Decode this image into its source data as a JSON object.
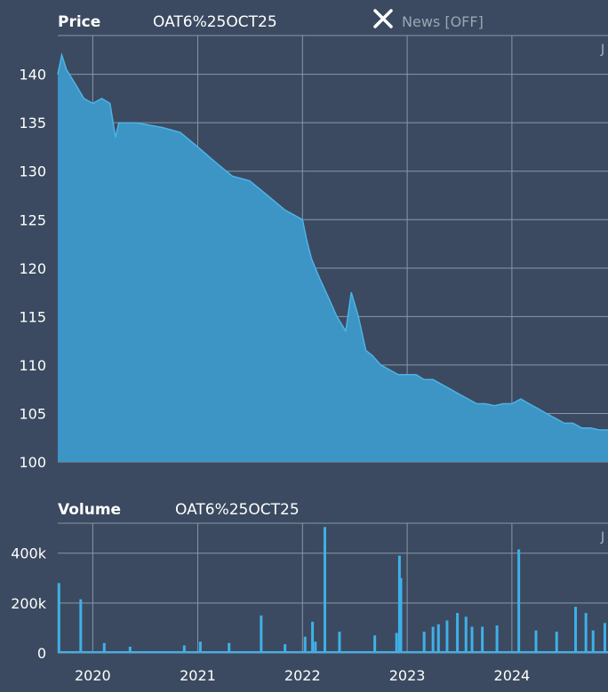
{
  "price_panel": {
    "title": "Price",
    "instrument": "OAT6%25OCT25",
    "news_toggle_label": "News [OFF]",
    "corner_label": "J"
  },
  "volume_panel": {
    "title": "Volume",
    "instrument": "OAT6%25OCT25",
    "corner_label": "J"
  },
  "colors": {
    "background": "#3b4a60",
    "grid": "#8896a8",
    "area_fill": "#3c95c4",
    "line": "#4db3e6",
    "volume_bar": "#3fb0e8"
  },
  "chart_data": [
    {
      "type": "area",
      "title": "Price",
      "series": [
        {
          "name": "OAT6%25OCT25",
          "x": [
            "2019-09-01",
            "2019-09-15",
            "2019-10-01",
            "2019-11-01",
            "2019-12-01",
            "2020-01-01",
            "2020-02-01",
            "2020-03-01",
            "2020-03-20",
            "2020-04-01",
            "2020-06-01",
            "2020-09-01",
            "2020-11-01",
            "2021-01-01",
            "2021-03-01",
            "2021-05-01",
            "2021-07-01",
            "2021-09-01",
            "2021-11-01",
            "2022-01-01",
            "2022-01-15",
            "2022-02-01",
            "2022-03-01",
            "2022-04-01",
            "2022-05-01",
            "2022-06-01",
            "2022-06-20",
            "2022-07-15",
            "2022-08-10",
            "2022-09-01",
            "2022-10-01",
            "2022-11-01",
            "2022-12-01",
            "2023-01-01",
            "2023-02-01",
            "2023-03-01",
            "2023-04-01",
            "2023-05-01",
            "2023-06-01",
            "2023-07-01",
            "2023-08-01",
            "2023-09-01",
            "2023-10-01",
            "2023-11-01",
            "2023-12-01",
            "2024-01-01",
            "2024-02-01",
            "2024-03-01",
            "2024-04-01",
            "2024-05-01",
            "2024-06-01",
            "2024-07-01",
            "2024-08-01",
            "2024-09-01",
            "2024-10-01",
            "2024-11-01",
            "2024-12-01"
          ],
          "values": [
            140.0,
            142.0,
            140.5,
            139.0,
            137.5,
            137.0,
            137.5,
            137.0,
            133.5,
            135.0,
            135.0,
            134.5,
            134.0,
            132.5,
            131.0,
            129.5,
            129.0,
            127.5,
            126.0,
            125.0,
            123.0,
            121.0,
            119.0,
            117.0,
            115.0,
            113.5,
            117.5,
            115.0,
            111.5,
            111.0,
            110.0,
            109.5,
            109.0,
            109.0,
            109.0,
            108.5,
            108.5,
            108.0,
            107.5,
            107.0,
            106.5,
            106.0,
            106.0,
            105.8,
            106.0,
            106.0,
            106.5,
            106.0,
            105.5,
            105.0,
            104.5,
            104.0,
            104.0,
            103.5,
            103.5,
            103.3,
            103.3
          ]
        }
      ],
      "xlabel": "",
      "ylabel": "",
      "x_ticks": [
        "2020",
        "2021",
        "2022",
        "2023",
        "2024"
      ],
      "y_ticks": [
        "100",
        "105",
        "110",
        "115",
        "120",
        "125",
        "130",
        "135",
        "140"
      ],
      "ylim": [
        100,
        144
      ],
      "xlim": [
        "2019-09-01",
        "2024-12-01"
      ],
      "grid": true
    },
    {
      "type": "bar",
      "title": "Volume",
      "series": [
        {
          "name": "OAT6%25OCT25",
          "x": [
            "2019-09-05",
            "2019-11-20",
            "2020-02-10",
            "2020-05-10",
            "2020-11-15",
            "2021-01-10",
            "2021-04-20",
            "2021-08-10",
            "2021-11-01",
            "2022-01-10",
            "2022-02-05",
            "2022-02-15",
            "2022-03-20",
            "2022-05-10",
            "2022-09-10",
            "2022-11-25",
            "2022-12-05",
            "2022-12-10",
            "2023-03-01",
            "2023-04-01",
            "2023-04-20",
            "2023-05-20",
            "2023-06-25",
            "2023-07-25",
            "2023-08-15",
            "2023-09-20",
            "2023-11-10",
            "2024-01-25",
            "2024-03-25",
            "2024-06-05",
            "2024-08-10",
            "2024-09-15",
            "2024-10-10",
            "2024-11-20"
          ],
          "values": [
            280000,
            215000,
            40000,
            25000,
            30000,
            45000,
            40000,
            150000,
            35000,
            65000,
            125000,
            45000,
            505000,
            85000,
            70000,
            80000,
            390000,
            300000,
            85000,
            105000,
            115000,
            130000,
            160000,
            145000,
            105000,
            105000,
            110000,
            415000,
            90000,
            85000,
            185000,
            160000,
            90000,
            120000
          ]
        }
      ],
      "x_ticks": [
        "2020",
        "2021",
        "2022",
        "2023",
        "2024"
      ],
      "y_ticks": [
        "0",
        "200k",
        "400k"
      ],
      "ylim": [
        0,
        520000
      ],
      "grid": true
    }
  ]
}
